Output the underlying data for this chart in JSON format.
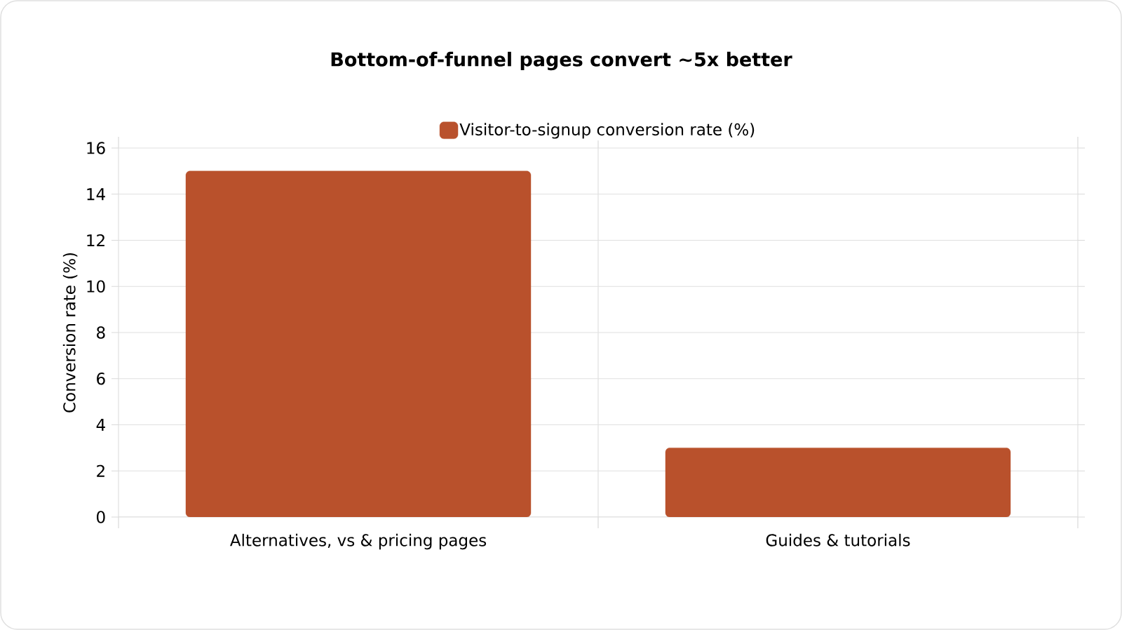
{
  "chart_data": {
    "type": "bar",
    "title": "Bottom-of-funnel pages convert ~5x better",
    "categories": [
      "Alternatives, vs & pricing pages",
      "Guides & tutorials"
    ],
    "series": [
      {
        "name": "Visitor-to-signup conversion rate (%)",
        "color": "#b9512c",
        "values": [
          15,
          3
        ]
      }
    ],
    "ylabel": "Conversion rate (%)",
    "ylim": [
      0,
      16
    ],
    "yticks": [
      0,
      2,
      4,
      6,
      8,
      10,
      12,
      14,
      16
    ],
    "grid": true,
    "legend": "top"
  }
}
